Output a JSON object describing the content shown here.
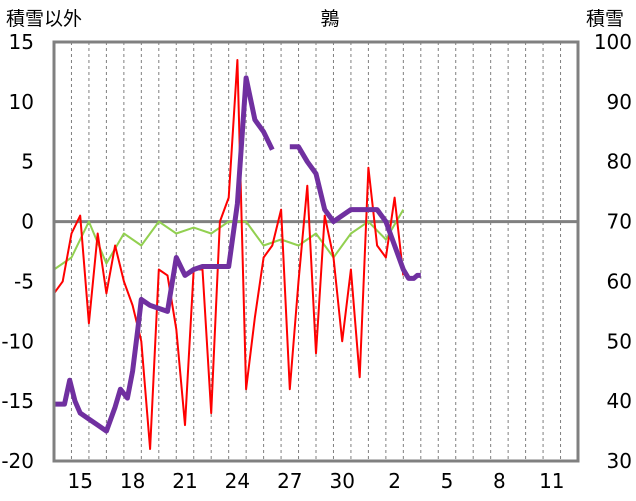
{
  "chart_data": {
    "type": "line",
    "title": "鶉",
    "ylabel_left": "積雪以外",
    "ylabel_right": "積雪",
    "ylim_left": [
      -20,
      15
    ],
    "ylim_right": [
      30,
      100
    ],
    "yticks_left": [
      "-20",
      "-15",
      "-10",
      "-5",
      "0",
      "5",
      "10",
      "15"
    ],
    "yticks_right": [
      "30",
      "40",
      "50",
      "60",
      "70",
      "80",
      "90",
      "100"
    ],
    "x_tick_labels": [
      "15",
      "18",
      "21",
      "24",
      "27",
      "30",
      "2",
      "5",
      "8",
      "11"
    ],
    "x_days": 30,
    "grid": "vertical dashed",
    "colors": {
      "temperature_red": "#ff0000",
      "other_green": "#92d050",
      "precip_yellow": "#ffc000",
      "bars_blue": "#0070c0",
      "snow_purple": "#7030a0",
      "zero_line": "#808080",
      "frame": "#808080"
    },
    "series": [
      {
        "axis": "right",
        "x": [
          0,
          0.6,
          0.9,
          1.2,
          1.5,
          2.0,
          2.5,
          3.0,
          3.5,
          3.8,
          4.2,
          4.5,
          4.8,
          5.0,
          5.5,
          6.0,
          6.5,
          7.0,
          7.5,
          8.0,
          8.5,
          9.0,
          9.5,
          10.0,
          10.5,
          11.0,
          11.5,
          12.0,
          12.5,
          13.0,
          13.5,
          14.0,
          14.5,
          15.0,
          15.5,
          16.0,
          16.5,
          17.0,
          17.5,
          18.0,
          18.5,
          19.0,
          19.5,
          20.0,
          20.3,
          20.6,
          20.8,
          21.0,
          21.3,
          21.6,
          22.0,
          22.4,
          22.8,
          23.0,
          23.5,
          24.0,
          24.5,
          25.0,
          25.5,
          26.0,
          26.5,
          27.0,
          27.5,
          28.0,
          28.5,
          29.0,
          29.5,
          30.0
        ],
        "values": [
          39.5,
          39.5,
          43.5,
          40.0,
          38.0,
          37.0,
          36.0,
          35.0,
          39.0,
          42.0,
          40.5,
          45.0,
          52.0,
          57.0,
          56.0,
          55.5,
          55.0,
          64.0,
          61.0,
          62.0,
          62.5,
          62.5,
          62.5,
          62.5,
          73.0,
          94.0,
          87.0,
          85.0,
          82.0,
          null,
          82.5,
          82.5,
          80.0,
          78.0,
          72.0,
          70.0,
          71.0,
          72.0,
          72.0,
          72.0,
          72.0,
          70.0,
          66.0,
          62.0,
          60.5,
          60.5,
          61.0,
          61.0,
          null,
          null,
          null,
          null,
          null,
          null,
          null,
          null,
          null,
          null,
          null,
          null,
          null,
          null,
          null,
          null,
          null,
          null,
          null,
          null
        ]
      },
      {
        "axis": "left",
        "x": [
          0,
          0.5,
          1.0,
          1.5,
          2.0,
          2.5,
          3.0,
          3.5,
          4.0,
          4.5,
          5.0,
          5.5,
          6.0,
          6.5,
          7.0,
          7.5,
          8.0,
          8.5,
          9.0,
          9.5,
          10.0,
          10.5,
          11.0,
          11.5,
          12.0,
          12.5,
          13.0,
          13.5,
          14.0,
          14.5,
          15.0,
          15.5,
          16.0,
          16.5,
          17.0,
          17.5,
          18.0,
          18.5,
          19.0,
          19.5,
          20.0
        ],
        "values": [
          -6.0,
          -5.0,
          -1.0,
          0.5,
          -8.5,
          -1.0,
          -6.0,
          -2.0,
          -5.0,
          -7.0,
          -10.0,
          -19.0,
          -4.0,
          -4.5,
          -9.0,
          -17.0,
          -4.0,
          -4.0,
          -16.0,
          0.0,
          2.0,
          13.5,
          -14.0,
          -8.0,
          -3.0,
          -2.0,
          1.0,
          -14.0,
          -5.0,
          3.0,
          -11.0,
          0.5,
          -3.0,
          -10.0,
          -4.0,
          -13.0,
          4.5,
          -2.0,
          -3.0,
          2.0,
          -4.5
        ]
      },
      {
        "axis": "left",
        "x": [
          0,
          1.0,
          2.0,
          3.0,
          4.0,
          5.0,
          6.0,
          7.0,
          8.0,
          9.0,
          10.0,
          11.0,
          12.0,
          13.0,
          14.0,
          15.0,
          16.0,
          17.0,
          18.0,
          19.0,
          20.0
        ],
        "values": [
          -4.0,
          -3.0,
          0.0,
          -3.5,
          -1.0,
          -2.0,
          0.0,
          -1.0,
          -0.5,
          -1.0,
          0.0,
          0.0,
          -2.0,
          -1.5,
          -2.0,
          -1.0,
          -3.0,
          -1.0,
          0.0,
          -1.5,
          1.0
        ]
      }
    ]
  }
}
